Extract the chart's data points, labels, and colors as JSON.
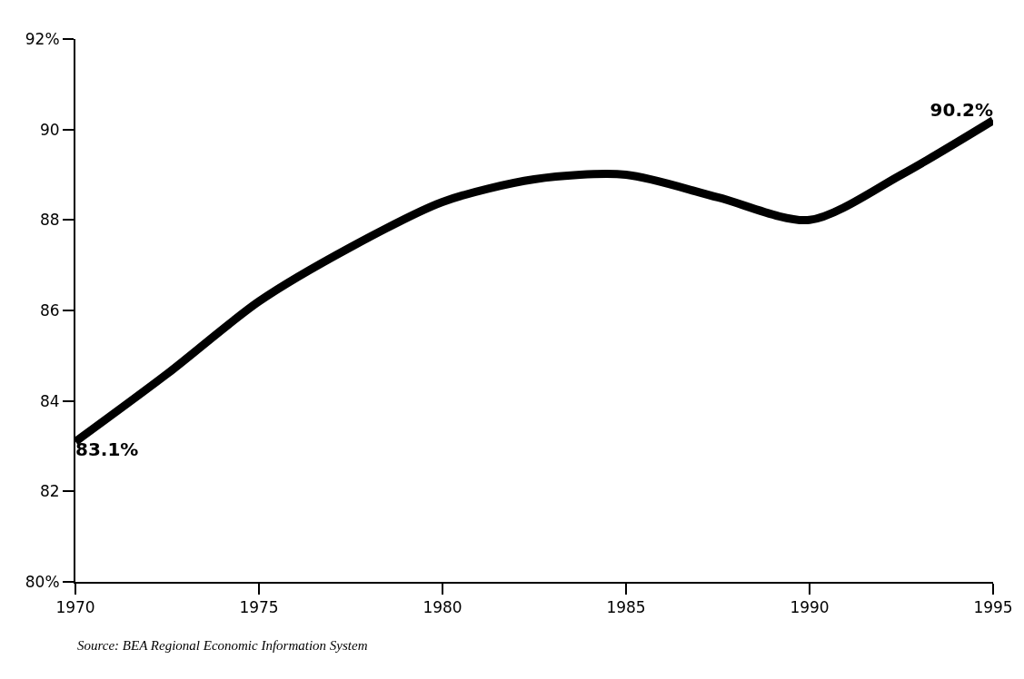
{
  "chart_data": {
    "type": "line",
    "x": [
      1970,
      1972.5,
      1975,
      1977.5,
      1980,
      1982.5,
      1985,
      1987.5,
      1990,
      1992.5,
      1995
    ],
    "series": [
      {
        "color": "#000000",
        "values": [
          83.1,
          84.6,
          86.2,
          87.4,
          88.4,
          88.9,
          89.0,
          88.5,
          88.0,
          89.0,
          90.2
        ],
        "value_labels": [
          "83.1%",
          null,
          null,
          null,
          null,
          null,
          null,
          null,
          null,
          null,
          "90.2%"
        ]
      }
    ],
    "xlim": [
      1970,
      1995
    ],
    "xticks": [
      1970,
      1975,
      1980,
      1985,
      1990,
      1995
    ],
    "ylim": [
      80,
      92
    ],
    "yticks": [
      {
        "value": 80,
        "label": "80%"
      },
      82,
      84,
      86,
      88,
      90,
      {
        "value": 92,
        "label": "92%"
      }
    ],
    "grid": false,
    "marker": "none",
    "line_style": "solid",
    "annotations": [
      "Source: BEA Regional Economic Information System"
    ]
  }
}
